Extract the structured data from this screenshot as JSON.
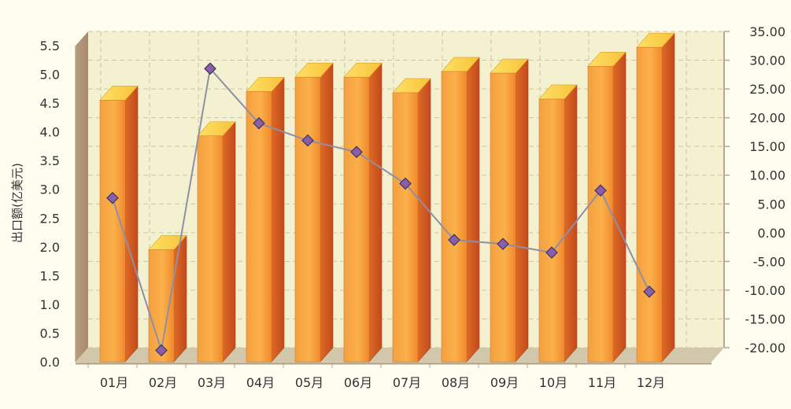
{
  "chart_data": {
    "type": "bar",
    "title": "",
    "xlabel": "",
    "ylabel": "出口额(亿美元)",
    "y2label": "",
    "categories": [
      "01月",
      "02月",
      "03月",
      "04月",
      "05月",
      "06月",
      "07月",
      "08月",
      "09月",
      "10月",
      "11月",
      "12月"
    ],
    "series": [
      {
        "type": "bar",
        "axis": "left",
        "values": [
          4.55,
          1.95,
          3.93,
          4.7,
          4.95,
          4.95,
          4.68,
          5.05,
          5.02,
          4.57,
          5.14,
          5.47
        ]
      },
      {
        "type": "line",
        "axis": "right",
        "values": [
          8.5,
          -18.0,
          31.0,
          21.5,
          18.5,
          16.5,
          11.0,
          1.2,
          0.5,
          -1.0,
          9.8,
          -7.8
        ]
      }
    ],
    "ylim": [
      0,
      5.5
    ],
    "y2lim": [
      -20,
      35
    ],
    "yticks": [
      "0.0",
      "0.5",
      "1.0",
      "1.5",
      "2.0",
      "2.5",
      "3.0",
      "3.5",
      "4.0",
      "4.5",
      "5.0",
      "5.5"
    ],
    "y2ticks": [
      "-20.00",
      "-15.00",
      "-10.00",
      "-5.00",
      "0.00",
      "5.00",
      "10.00",
      "15.00",
      "20.00",
      "25.00",
      "30.00",
      "35.00"
    ],
    "grid": true,
    "legend": "none",
    "colors": {
      "bar_front": "#f7a23c",
      "bar_top": "#ffd64a",
      "bar_side": "#d3561f",
      "line": "#8f8fa6",
      "marker": "#8a5ea8",
      "plot_bg": "#f3f1cf",
      "page_bg": "#fdfdf0",
      "grid": "#cdc8a3",
      "floor": "#cbbfa4",
      "text": "#333333"
    }
  }
}
